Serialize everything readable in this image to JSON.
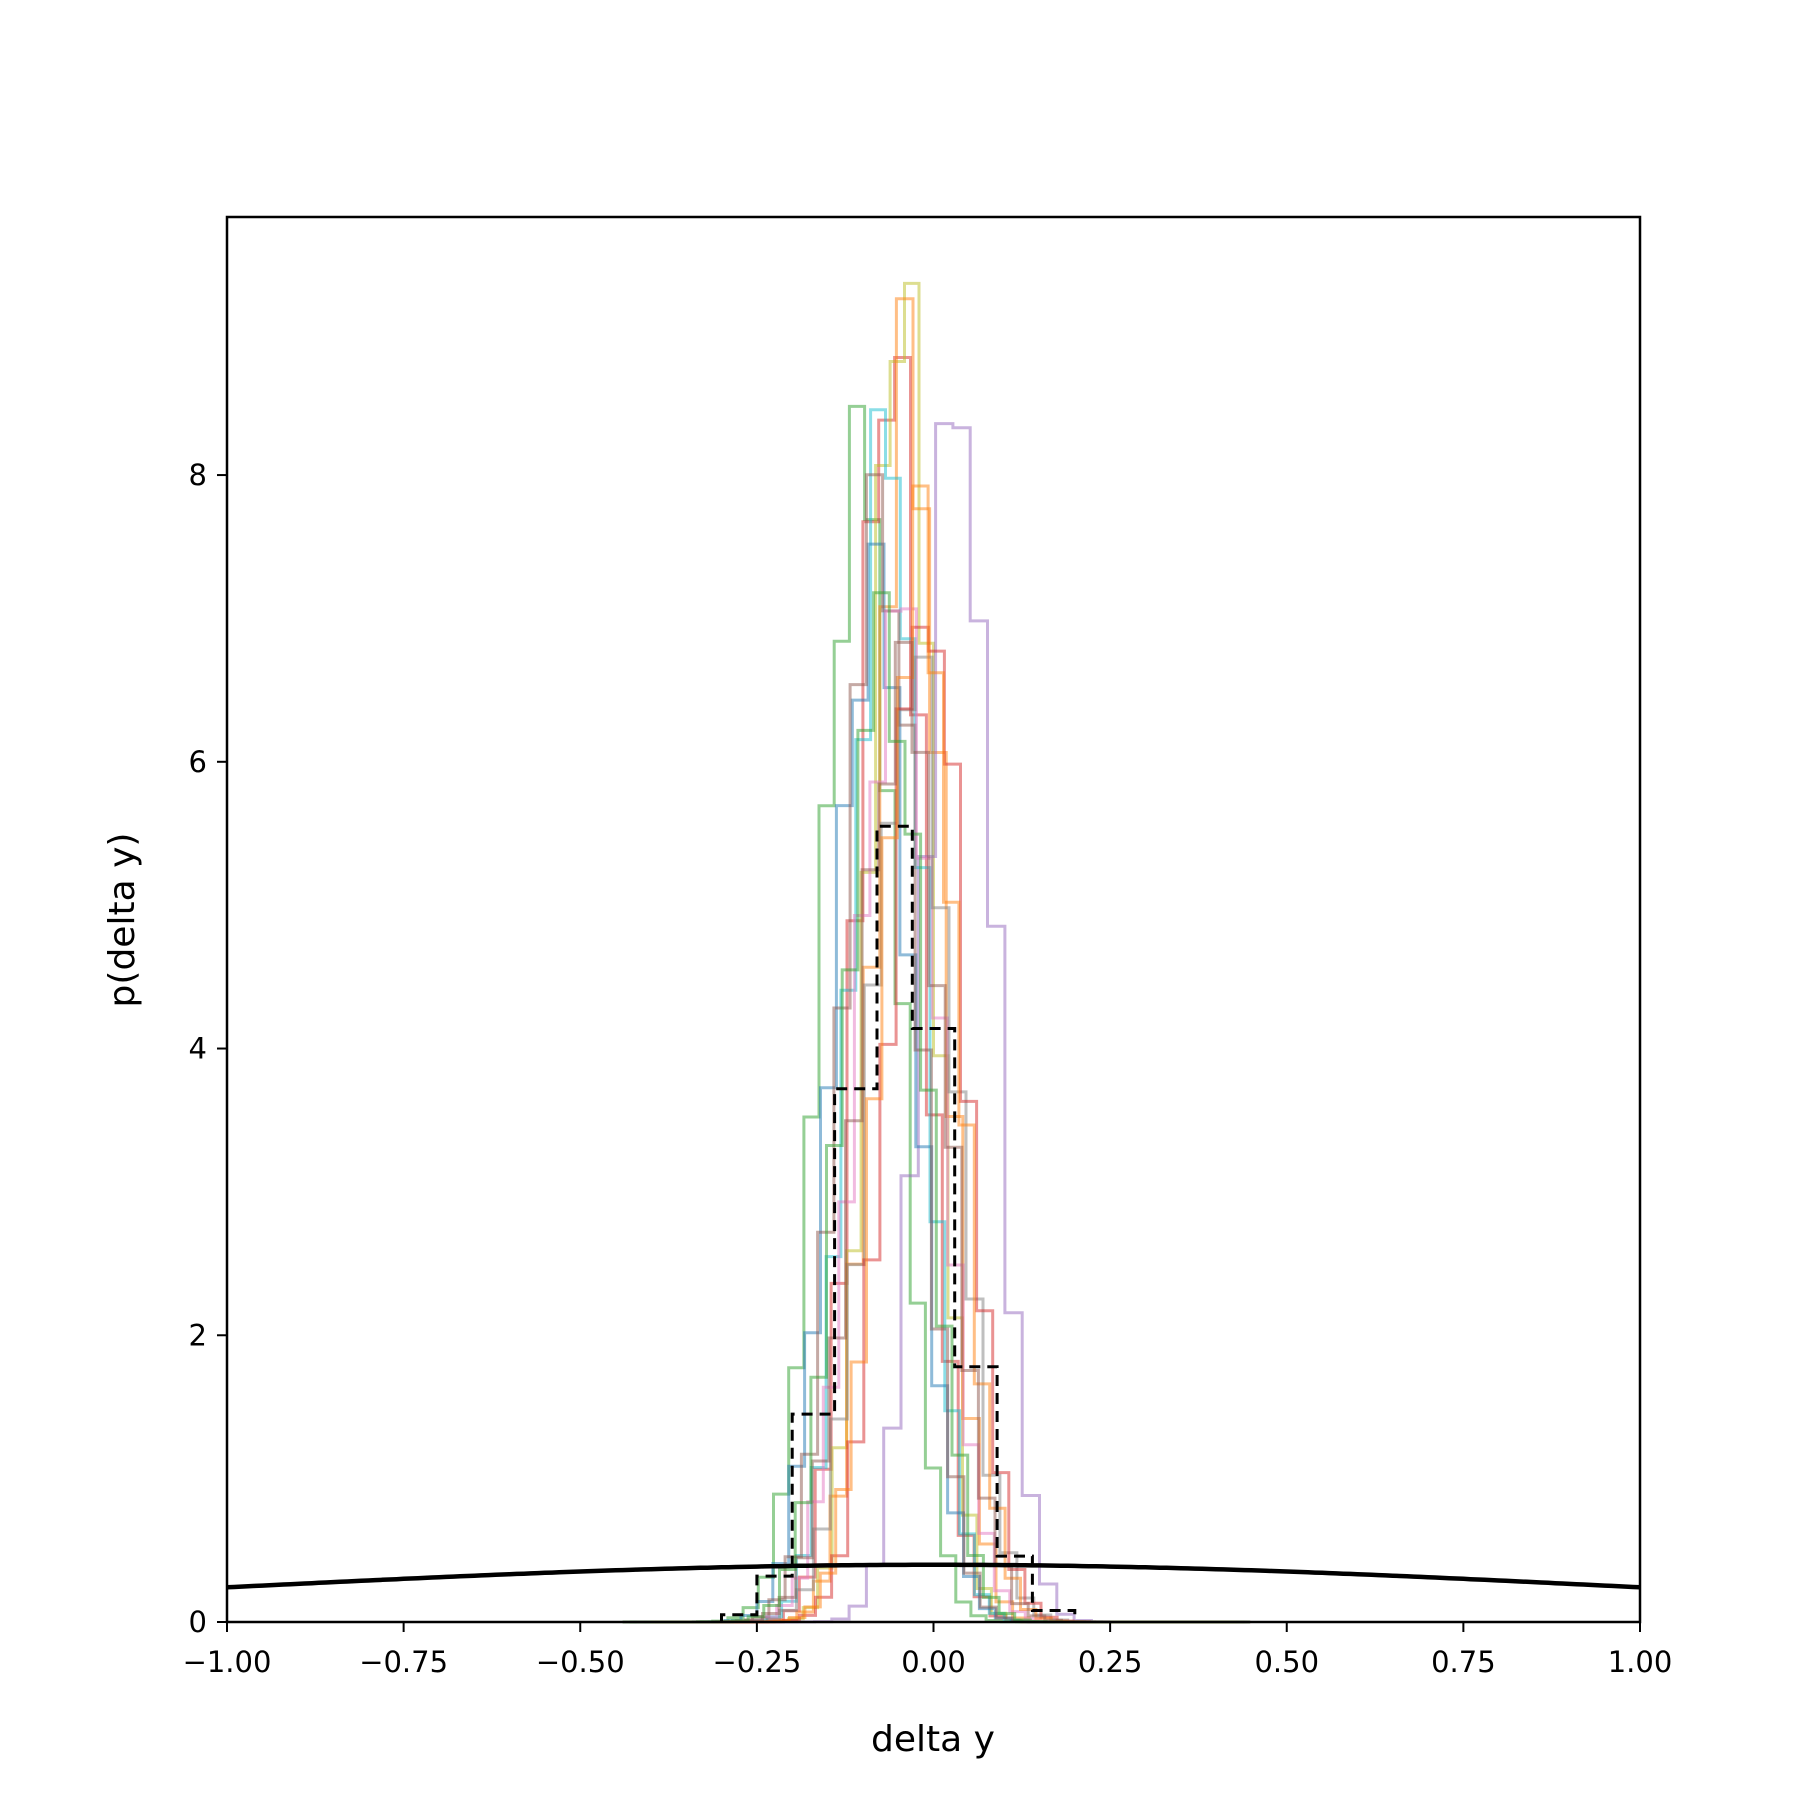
{
  "chart_data": {
    "type": "histogram",
    "title": "",
    "xlabel": "delta y",
    "ylabel": "p(delta y)",
    "xlim": [
      -1.0,
      1.0
    ],
    "ylim": [
      0,
      9.8
    ],
    "grid": false,
    "legend": "none",
    "xticks": [
      -1.0,
      -0.75,
      -0.5,
      -0.25,
      0.0,
      0.25,
      0.5,
      0.75,
      1.0
    ],
    "xtick_labels": [
      "−1.00",
      "−0.75",
      "−0.50",
      "−0.25",
      "0.00",
      "0.25",
      "0.50",
      "0.75",
      "1.00"
    ],
    "yticks": [
      0,
      2,
      4,
      6,
      8
    ],
    "ytick_labels": [
      "0",
      "2",
      "4",
      "6",
      "8"
    ],
    "prior_curve": {
      "style": "solid",
      "color": "#000000",
      "mean": 0.0,
      "std": 1.0
    },
    "aggregate_histogram": {
      "style": "dashed",
      "color": "#000000",
      "edges": [
        -0.3,
        -0.25,
        -0.2,
        -0.14,
        -0.08,
        -0.03,
        0.03,
        0.09,
        0.14,
        0.2
      ],
      "values": [
        0.05,
        0.32,
        1.45,
        3.72,
        5.55,
        4.14,
        1.78,
        0.46,
        0.08
      ]
    },
    "series": [
      {
        "color": "#2ca02c",
        "center": -0.105,
        "peak": 8.15,
        "sigma": 0.052,
        "edge_start": -0.42,
        "bin_width": 0.0215
      },
      {
        "color": "#d62728",
        "center": -0.06,
        "peak": 9.0,
        "sigma": 0.046,
        "edge_start": -0.415,
        "bin_width": 0.0225
      },
      {
        "color": "#bcbd22",
        "center": -0.045,
        "peak": 9.45,
        "sigma": 0.043,
        "edge_start": -0.41,
        "bin_width": 0.0205
      },
      {
        "color": "#ff7f0e",
        "center": -0.035,
        "peak": 8.8,
        "sigma": 0.047,
        "edge_start": -0.405,
        "bin_width": 0.0235
      },
      {
        "color": "#9467bd",
        "center": 0.035,
        "peak": 8.6,
        "sigma": 0.048,
        "edge_start": -0.34,
        "bin_width": 0.0245
      },
      {
        "color": "#17becf",
        "center": -0.065,
        "peak": 8.3,
        "sigma": 0.049,
        "edge_start": -0.425,
        "bin_width": 0.021
      },
      {
        "color": "#1f77b4",
        "center": -0.085,
        "peak": 7.25,
        "sigma": 0.055,
        "edge_start": -0.43,
        "bin_width": 0.0225
      },
      {
        "color": "#8c564b",
        "center": -0.075,
        "peak": 7.8,
        "sigma": 0.052,
        "edge_start": -0.44,
        "bin_width": 0.023
      },
      {
        "color": "#e377c2",
        "center": -0.05,
        "peak": 7.05,
        "sigma": 0.056,
        "edge_start": -0.42,
        "bin_width": 0.022
      },
      {
        "color": "#7f7f7f",
        "center": -0.03,
        "peak": 6.6,
        "sigma": 0.059,
        "edge_start": -0.41,
        "bin_width": 0.024
      },
      {
        "color": "#d62728",
        "center": -0.01,
        "peak": 7.2,
        "sigma": 0.053,
        "edge_start": -0.395,
        "bin_width": 0.0228
      },
      {
        "color": "#ff7f0e",
        "center": -0.02,
        "peak": 7.5,
        "sigma": 0.052,
        "edge_start": -0.4,
        "bin_width": 0.0218
      },
      {
        "color": "#8c564b",
        "center": -0.045,
        "peak": 6.6,
        "sigma": 0.06,
        "edge_start": -0.43,
        "bin_width": 0.0235
      },
      {
        "color": "#2ca02c",
        "center": -0.07,
        "peak": 6.9,
        "sigma": 0.056,
        "edge_start": -0.44,
        "bin_width": 0.0222
      }
    ]
  }
}
